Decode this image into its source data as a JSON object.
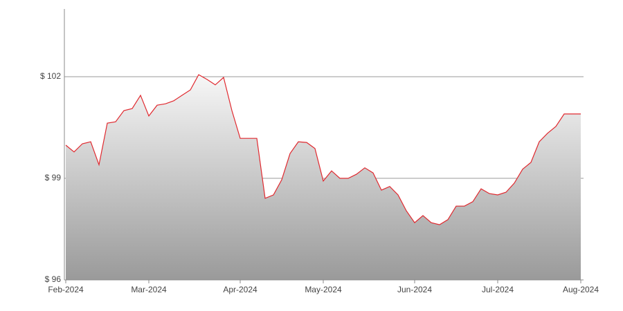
{
  "chart_data": {
    "type": "area",
    "categories": [
      "Feb-2024",
      null,
      null,
      null,
      null,
      null,
      null,
      null,
      null,
      null,
      "Mar-2024",
      null,
      null,
      null,
      null,
      null,
      null,
      null,
      null,
      null,
      null,
      "Apr-2024",
      null,
      null,
      null,
      null,
      null,
      null,
      null,
      null,
      null,
      "May-2024",
      null,
      null,
      null,
      null,
      null,
      null,
      null,
      null,
      null,
      null,
      "Jun-2024",
      null,
      null,
      null,
      null,
      null,
      null,
      null,
      null,
      null,
      "Jul-2024",
      null,
      null,
      null,
      null,
      null,
      null,
      null,
      null,
      null,
      "Aug-2024"
    ],
    "values": [
      99.98,
      99.78,
      100.02,
      100.08,
      99.4,
      100.63,
      100.67,
      101.0,
      101.06,
      101.45,
      100.84,
      101.16,
      101.2,
      101.29,
      101.45,
      101.61,
      102.06,
      101.92,
      101.76,
      101.98,
      101.0,
      100.18,
      100.18,
      100.18,
      98.41,
      98.51,
      98.96,
      99.73,
      100.08,
      100.06,
      99.88,
      98.92,
      99.22,
      99.0,
      99.0,
      99.12,
      99.31,
      99.16,
      98.65,
      98.76,
      98.51,
      98.04,
      97.69,
      97.9,
      97.69,
      97.63,
      97.78,
      98.18,
      98.18,
      98.31,
      98.69,
      98.55,
      98.51,
      98.59,
      98.86,
      99.27,
      99.47,
      100.08,
      100.33,
      100.53,
      100.9,
      100.9,
      100.9
    ],
    "color": "#e0282e",
    "ylim": [
      96,
      104
    ],
    "yticks": [
      {
        "value": 96,
        "label": "$ 96"
      },
      {
        "value": 99,
        "label": "$ 99"
      },
      {
        "value": 102,
        "label": "$ 102"
      }
    ],
    "grid": true
  }
}
